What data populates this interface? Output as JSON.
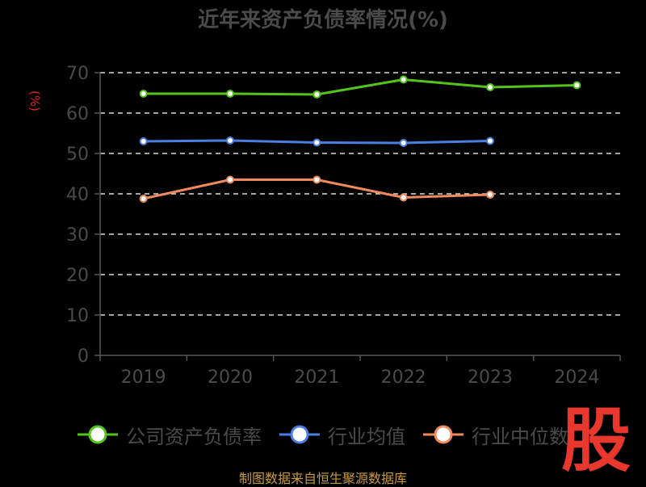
{
  "title": "近年来资产负债率情况(%)",
  "source_note": "制图数据来自恒生聚源数据库",
  "logo_char": "股",
  "colors": {
    "background": "#000000",
    "axis": "#555555",
    "tick_text": "#4a4a4a",
    "grid": "#d9d9d9"
  },
  "chart_data": {
    "type": "line",
    "title": "近年来资产负债率情况(%)",
    "xlabel": "",
    "ylabel": "(%)",
    "categories": [
      "2019",
      "2020",
      "2021",
      "2022",
      "2023",
      "2024"
    ],
    "ylim": [
      0,
      70
    ],
    "yticks": [
      0,
      10,
      20,
      30,
      40,
      50,
      60,
      70
    ],
    "grid": true,
    "legend_position": "bottom",
    "series": [
      {
        "name": "公司资产负债率",
        "color": "#52c41a",
        "values": [
          64.8,
          64.8,
          64.6,
          68.3,
          66.4,
          66.9
        ]
      },
      {
        "name": "行业均值",
        "color": "#4a7fe0",
        "values": [
          53.0,
          53.2,
          52.7,
          52.6,
          53.1,
          null
        ]
      },
      {
        "name": "行业中位数",
        "color": "#f08a5d",
        "values": [
          38.8,
          43.5,
          43.5,
          39.1,
          39.8,
          null
        ]
      }
    ]
  }
}
